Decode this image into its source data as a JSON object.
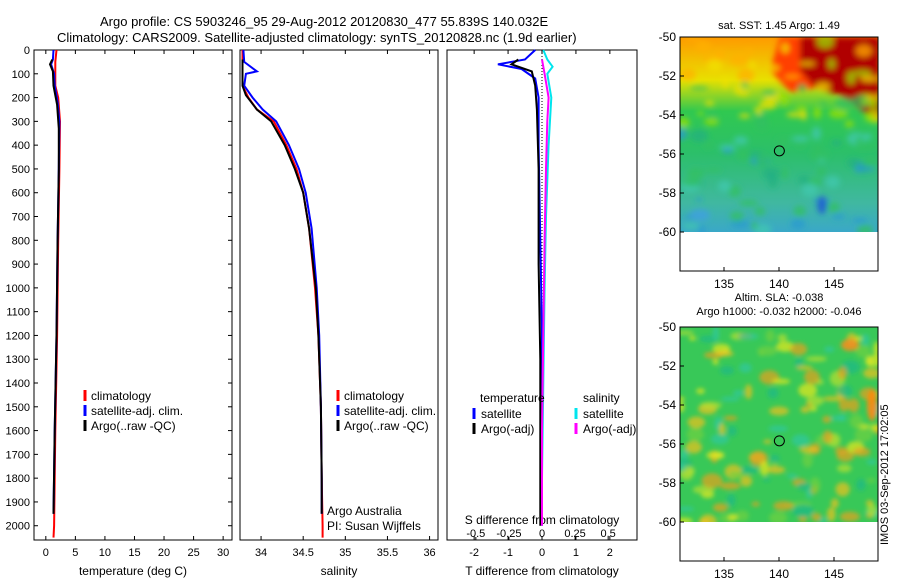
{
  "titles": {
    "line1": "Argo profile: CS 5903246_95 29-Aug-2012 20120830_477 55.839S 140.032E",
    "line2": "Climatology: CARS2009. Satellite-adjusted climatology: synTS_20120828.nc (1.9d earlier)"
  },
  "stamp": "IMOS 03-Sep-2012 17:02:05",
  "colors": {
    "climatology": "#ff0000",
    "satellite": "#0000ff",
    "argo": "#000000",
    "sal_satellite": "#00e5ee",
    "sal_argo": "#ff00ff"
  },
  "chart_data": [
    {
      "id": "temperature",
      "type": "line",
      "xlabel": "temperature (deg C)",
      "ylabel": "",
      "xlim": [
        -2,
        31.5
      ],
      "ylim": [
        2060,
        0
      ],
      "xticks": [
        0,
        5,
        10,
        15,
        20,
        25,
        30
      ],
      "yticks": [
        0,
        100,
        200,
        300,
        400,
        500,
        600,
        700,
        800,
        900,
        1000,
        1100,
        1200,
        1300,
        1400,
        1500,
        1600,
        1700,
        1800,
        1900,
        2000
      ],
      "legend": [
        "climatology",
        "satellite-adj. clim.",
        "Argo(..raw -QC)"
      ],
      "legend_position": "center-left",
      "series": [
        {
          "name": "climatology",
          "color_key": "climatology",
          "points": [
            [
              1.8,
              0
            ],
            [
              1.6,
              50
            ],
            [
              1.6,
              150
            ],
            [
              2.1,
              200
            ],
            [
              2.4,
              300
            ],
            [
              2.3,
              500
            ],
            [
              2.1,
              800
            ],
            [
              1.9,
              1200
            ],
            [
              1.6,
              1600
            ],
            [
              1.4,
              2000
            ],
            [
              1.3,
              2050
            ]
          ]
        },
        {
          "name": "satellite-adj. clim.",
          "color_key": "satellite",
          "points": [
            [
              1.3,
              0
            ],
            [
              1.2,
              40
            ],
            [
              0.9,
              60
            ],
            [
              1.4,
              100
            ],
            [
              1.5,
              150
            ],
            [
              2.0,
              220
            ],
            [
              2.3,
              300
            ],
            [
              2.2,
              500
            ],
            [
              2.0,
              800
            ],
            [
              1.8,
              1200
            ],
            [
              1.5,
              1600
            ],
            [
              1.3,
              1950
            ]
          ]
        },
        {
          "name": "Argo(..raw -QC)",
          "color_key": "argo",
          "points": [
            [
              1.1,
              40
            ],
            [
              0.7,
              60
            ],
            [
              1.2,
              90
            ],
            [
              1.3,
              150
            ],
            [
              1.9,
              230
            ],
            [
              2.2,
              330
            ],
            [
              2.2,
              500
            ],
            [
              2.0,
              800
            ],
            [
              1.8,
              1200
            ],
            [
              1.5,
              1600
            ],
            [
              1.3,
              1950
            ]
          ]
        }
      ]
    },
    {
      "id": "salinity",
      "type": "line",
      "xlabel": "salinity",
      "ylabel": "",
      "xlim": [
        33.75,
        36.1
      ],
      "ylim": [
        2060,
        0
      ],
      "xticks": [
        34,
        34.5,
        35,
        35.5,
        36
      ],
      "xticklabels": [
        "34",
        "34.5",
        "35",
        "35.5",
        "36"
      ],
      "legend": [
        "climatology",
        "satellite-adj. clim.",
        "Argo(..raw -QC)"
      ],
      "legend_position": "center-right",
      "annotation": [
        "Argo Australia",
        "PI: Susan Wijffels"
      ],
      "series": [
        {
          "name": "climatology",
          "color_key": "climatology",
          "points": [
            [
              33.78,
              0
            ],
            [
              33.78,
              150
            ],
            [
              33.85,
              200
            ],
            [
              33.95,
              250
            ],
            [
              34.15,
              300
            ],
            [
              34.3,
              400
            ],
            [
              34.42,
              500
            ],
            [
              34.5,
              600
            ],
            [
              34.57,
              750
            ],
            [
              34.64,
              1000
            ],
            [
              34.68,
              1200
            ],
            [
              34.71,
              1500
            ],
            [
              34.72,
              1800
            ],
            [
              34.73,
              2000
            ],
            [
              34.73,
              2050
            ]
          ]
        },
        {
          "name": "satellite-adj. clim.",
          "color_key": "satellite",
          "points": [
            [
              33.79,
              0
            ],
            [
              33.8,
              50
            ],
            [
              33.95,
              90
            ],
            [
              33.82,
              100
            ],
            [
              33.8,
              150
            ],
            [
              33.9,
              200
            ],
            [
              34.02,
              250
            ],
            [
              34.18,
              300
            ],
            [
              34.33,
              400
            ],
            [
              34.45,
              500
            ],
            [
              34.53,
              600
            ],
            [
              34.6,
              750
            ],
            [
              34.66,
              1000
            ],
            [
              34.69,
              1200
            ],
            [
              34.71,
              1500
            ],
            [
              34.72,
              1800
            ],
            [
              34.72,
              1950
            ]
          ]
        },
        {
          "name": "Argo(..raw -QC)",
          "color_key": "argo",
          "points": [
            [
              33.78,
              40
            ],
            [
              33.78,
              150
            ],
            [
              33.82,
              190
            ],
            [
              33.95,
              250
            ],
            [
              34.12,
              300
            ],
            [
              34.28,
              400
            ],
            [
              34.4,
              500
            ],
            [
              34.5,
              600
            ],
            [
              34.57,
              750
            ],
            [
              34.65,
              1000
            ],
            [
              34.68,
              1200
            ],
            [
              34.71,
              1500
            ],
            [
              34.72,
              1800
            ],
            [
              34.72,
              1950
            ]
          ]
        }
      ]
    },
    {
      "id": "differences",
      "type": "line",
      "xlabel": "T difference from climatology",
      "x2label": "S difference from climatology",
      "ylabel": "",
      "xlim": [
        -2.8,
        2.8
      ],
      "ylim": [
        2060,
        0
      ],
      "xticks": [
        -2,
        -1,
        0,
        1,
        2
      ],
      "x2lim": [
        -0.7,
        0.7
      ],
      "x2ticks": [
        -0.5,
        -0.25,
        0,
        0.25,
        0.5
      ],
      "x2ticklabels": [
        "-0.5",
        "-0.25",
        "0",
        "0.25",
        "0.5"
      ],
      "legend_temperature_heading": "temperature",
      "legend_salinity_heading": "salinity",
      "legend_temperature": [
        "satellite",
        "Argo(-adj)"
      ],
      "legend_salinity": [
        "satellite",
        "Argo(-adj)"
      ],
      "series": [
        {
          "name": "satellite",
          "group": "temperature",
          "color_key": "satellite",
          "axis": "T",
          "points": [
            [
              -0.2,
              0
            ],
            [
              -0.5,
              40
            ],
            [
              -1.3,
              60
            ],
            [
              -0.6,
              80
            ],
            [
              -0.2,
              120
            ],
            [
              -0.1,
              200
            ],
            [
              -0.1,
              400
            ],
            [
              -0.05,
              800
            ],
            [
              0,
              1200
            ],
            [
              0,
              1600
            ],
            [
              0,
              2000
            ]
          ]
        },
        {
          "name": "Argo(-adj)",
          "group": "temperature",
          "color_key": "argo",
          "axis": "T",
          "points": [
            [
              -0.7,
              40
            ],
            [
              -0.9,
              60
            ],
            [
              -0.3,
              90
            ],
            [
              -0.2,
              150
            ],
            [
              -0.15,
              250
            ],
            [
              -0.1,
              500
            ],
            [
              -0.1,
              900
            ],
            [
              -0.05,
              1300
            ],
            [
              -0.05,
              1700
            ],
            [
              -0.05,
              2000
            ]
          ]
        },
        {
          "name": "satellite",
          "group": "salinity",
          "color_key": "sal_satellite",
          "axis": "S",
          "points": [
            [
              0.01,
              0
            ],
            [
              0.04,
              40
            ],
            [
              0.08,
              70
            ],
            [
              0.04,
              100
            ],
            [
              0.07,
              200
            ],
            [
              0.05,
              400
            ],
            [
              0.03,
              700
            ],
            [
              0.02,
              1000
            ],
            [
              0.01,
              1400
            ],
            [
              0,
              1800
            ],
            [
              0,
              2000
            ]
          ]
        },
        {
          "name": "Argo(-adj)",
          "group": "salinity",
          "color_key": "sal_argo",
          "axis": "S",
          "points": [
            [
              0.0,
              40
            ],
            [
              0.02,
              100
            ],
            [
              0.05,
              200
            ],
            [
              0.04,
              300
            ],
            [
              0.03,
              500
            ],
            [
              0.02,
              800
            ],
            [
              0.01,
              1200
            ],
            [
              0.0,
              1600
            ],
            [
              0.0,
              2000
            ]
          ]
        }
      ]
    },
    {
      "id": "sst-map",
      "type": "heatmap",
      "title": "sat. SST: 1.45 Argo: 1.49",
      "xlim": [
        131,
        149
      ],
      "ylim": [
        -62,
        -50
      ],
      "data_ylim": [
        -60,
        -50
      ],
      "xticks": [
        135,
        140,
        145
      ],
      "yticks": [
        -50,
        -52,
        -54,
        -56,
        -58,
        -60
      ],
      "marker": {
        "lon": 140.032,
        "lat": -55.839
      }
    },
    {
      "id": "sla-map",
      "type": "heatmap",
      "title_line1": "Altim. SLA: -0.038",
      "title_line2": "Argo h1000: -0.032 h2000: -0.046",
      "xlim": [
        131,
        149
      ],
      "ylim": [
        -62,
        -50
      ],
      "data_ylim": [
        -60,
        -50
      ],
      "xticks": [
        135,
        140,
        145
      ],
      "yticks": [
        -50,
        -52,
        -54,
        -56,
        -58,
        -60
      ],
      "marker": {
        "lon": 140.032,
        "lat": -55.839
      }
    }
  ]
}
